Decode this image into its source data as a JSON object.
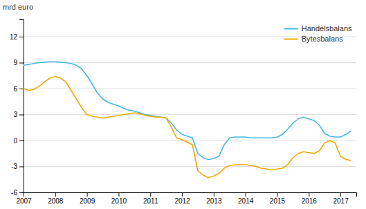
{
  "chart_data": {
    "type": "line",
    "ylabel": "mrd euro",
    "x": [
      2007.0,
      2007.17,
      2007.33,
      2007.5,
      2007.67,
      2007.83,
      2008.0,
      2008.17,
      2008.33,
      2008.5,
      2008.67,
      2008.83,
      2009.0,
      2009.17,
      2009.33,
      2009.5,
      2009.67,
      2009.83,
      2010.0,
      2010.17,
      2010.33,
      2010.5,
      2010.67,
      2010.83,
      2011.0,
      2011.17,
      2011.33,
      2011.5,
      2011.67,
      2011.83,
      2012.0,
      2012.17,
      2012.33,
      2012.5,
      2012.67,
      2012.83,
      2013.0,
      2013.17,
      2013.33,
      2013.5,
      2013.67,
      2013.83,
      2014.0,
      2014.17,
      2014.33,
      2014.5,
      2014.67,
      2014.83,
      2015.0,
      2015.17,
      2015.33,
      2015.5,
      2015.67,
      2015.83,
      2016.0,
      2016.17,
      2016.33,
      2016.5,
      2016.67,
      2016.83,
      2017.0,
      2017.17,
      2017.33
    ],
    "series": [
      {
        "name": "Handelsbalans",
        "color": "#45b8e8",
        "values": [
          8.7,
          8.8,
          8.9,
          9.0,
          9.05,
          9.1,
          9.1,
          9.05,
          9.0,
          8.9,
          8.7,
          8.3,
          7.5,
          6.5,
          5.5,
          4.8,
          4.4,
          4.2,
          4.0,
          3.7,
          3.5,
          3.4,
          3.2,
          3.0,
          2.9,
          2.8,
          2.7,
          2.6,
          2.0,
          1.2,
          0.7,
          0.5,
          0.3,
          -1.5,
          -2.0,
          -2.2,
          -2.1,
          -1.8,
          -0.5,
          0.3,
          0.4,
          0.4,
          0.4,
          0.3,
          0.3,
          0.3,
          0.3,
          0.3,
          0.4,
          0.7,
          1.3,
          2.0,
          2.5,
          2.7,
          2.5,
          2.3,
          1.8,
          0.8,
          0.5,
          0.4,
          0.4,
          0.7,
          1.1
        ]
      },
      {
        "name": "Bytesbalans",
        "color": "#f5a800",
        "values": [
          6.0,
          5.8,
          5.9,
          6.3,
          6.8,
          7.2,
          7.4,
          7.2,
          6.8,
          5.8,
          4.8,
          3.8,
          3.0,
          2.8,
          2.7,
          2.6,
          2.7,
          2.8,
          2.9,
          3.0,
          3.1,
          3.2,
          3.1,
          2.9,
          2.8,
          2.7,
          2.7,
          2.6,
          1.5,
          0.3,
          0.1,
          -0.2,
          -0.5,
          -3.5,
          -4.0,
          -4.3,
          -4.1,
          -3.8,
          -3.2,
          -2.9,
          -2.8,
          -2.8,
          -2.8,
          -2.9,
          -3.0,
          -3.2,
          -3.3,
          -3.4,
          -3.3,
          -3.2,
          -2.8,
          -2.0,
          -1.5,
          -1.3,
          -1.4,
          -1.5,
          -1.2,
          -0.3,
          0.0,
          -0.3,
          -1.8,
          -2.2,
          -2.3
        ]
      }
    ],
    "xlim": [
      2007,
      2017.5
    ],
    "xticks": [
      2007,
      2008,
      2009,
      2010,
      2011,
      2012,
      2013,
      2014,
      2015,
      2016,
      2017
    ],
    "ylim": [
      -6,
      14
    ],
    "yticks": [
      -6,
      -3,
      0,
      3,
      6,
      9,
      12
    ],
    "grid": true,
    "legend": "upper right"
  }
}
